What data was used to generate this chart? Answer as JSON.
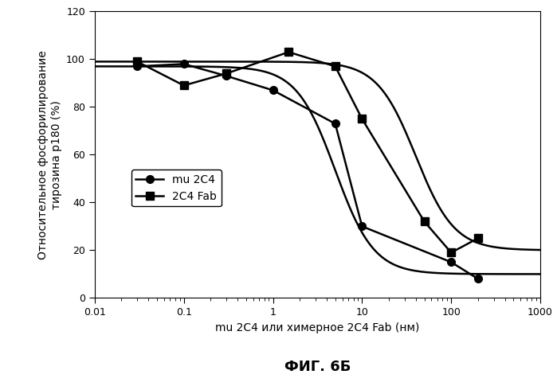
{
  "title": "ФИГ. 6Б",
  "xlabel": "mu 2C4 или химерное 2C4 Fab (нм)",
  "ylabel": "Относительное фосфорилирование\nтирозина р180 (%)",
  "xlim_log": [
    0.01,
    1000
  ],
  "ylim": [
    0,
    120
  ],
  "yticks": [
    0,
    20,
    40,
    60,
    80,
    100,
    120
  ],
  "mu2c4_x": [
    0.03,
    0.1,
    0.3,
    1.0,
    5.0,
    10.0,
    100.0,
    200.0
  ],
  "mu2c4_y": [
    97,
    98,
    93,
    87,
    73,
    30,
    15,
    8
  ],
  "fab2c4_x": [
    0.03,
    0.1,
    0.3,
    1.5,
    5.0,
    10.0,
    50.0,
    100.0,
    200.0
  ],
  "fab2c4_y": [
    99,
    89,
    94,
    103,
    97,
    75,
    32,
    19,
    25
  ],
  "legend_labels": [
    "mu 2C4",
    "2C4 Fab"
  ],
  "line_color": "#000000",
  "background_color": "#ffffff",
  "marker_circle": "o",
  "marker_square": "s",
  "markersize": 7,
  "linewidth": 1.8
}
